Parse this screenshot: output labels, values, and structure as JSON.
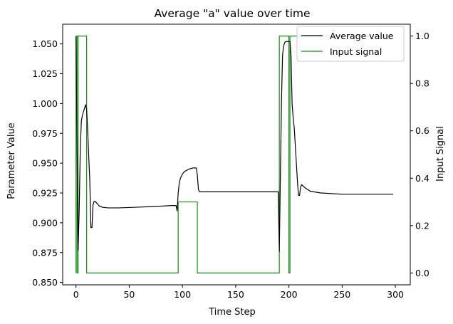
{
  "chart_data": {
    "type": "line",
    "title": "Average \"a\" value over time",
    "xlabel": "Time Step",
    "ylabel": "Parameter Value",
    "y2label": "Input Signal",
    "xlim": [
      -12.5,
      314
    ],
    "ylim": [
      0.848,
      1.0665
    ],
    "y2lim": [
      -0.05,
      1.05
    ],
    "xticks": [
      0,
      50,
      100,
      150,
      200,
      250,
      300
    ],
    "yticks": [
      0.85,
      0.875,
      0.9,
      0.925,
      0.95,
      0.975,
      1.0,
      1.025,
      1.05
    ],
    "ytick_labels": [
      "0.850",
      "0.875",
      "0.900",
      "0.925",
      "0.950",
      "0.975",
      "1.000",
      "1.025",
      "1.050"
    ],
    "y2ticks": [
      0.0,
      0.2,
      0.4,
      0.6,
      0.8,
      1.0
    ],
    "y2tick_labels": [
      "0.0",
      "0.2",
      "0.4",
      "0.6",
      "0.8",
      "1.0"
    ],
    "legend_position": "top-right",
    "grid": false,
    "series": [
      {
        "name": "Average value",
        "axis": "left",
        "color": "#000000",
        "x": [
          0,
          1,
          2,
          3,
          4,
          5,
          6,
          7,
          8,
          9,
          10,
          11,
          12,
          13,
          14,
          15,
          16,
          17,
          18,
          19,
          20,
          21,
          22,
          25,
          30,
          40,
          50,
          60,
          70,
          80,
          90,
          94,
          95,
          96,
          97,
          98,
          100,
          102,
          104,
          106,
          108,
          110,
          113,
          114,
          115,
          116,
          120,
          150,
          189,
          190,
          191,
          192,
          193,
          194,
          195,
          196,
          197,
          198,
          199,
          200,
          201,
          202,
          203,
          204,
          205,
          206,
          207,
          208,
          209,
          210,
          211,
          212,
          215,
          220,
          230,
          250,
          270,
          298
        ],
        "y": [
          1.056,
          0.96,
          0.877,
          0.91,
          0.96,
          0.985,
          0.99,
          0.993,
          0.996,
          0.999,
          0.995,
          0.978,
          0.955,
          0.935,
          0.896,
          0.896,
          0.915,
          0.918,
          0.918,
          0.917,
          0.916,
          0.915,
          0.914,
          0.913,
          0.9125,
          0.9125,
          0.9128,
          0.9132,
          0.9136,
          0.914,
          0.9145,
          0.9145,
          0.91,
          0.925,
          0.933,
          0.937,
          0.941,
          0.943,
          0.944,
          0.945,
          0.9455,
          0.946,
          0.946,
          0.94,
          0.928,
          0.926,
          0.926,
          0.926,
          0.926,
          0.926,
          0.876,
          0.94,
          1.0,
          1.04,
          1.048,
          1.051,
          1.052,
          1.052,
          1.052,
          1.052,
          1.052,
          1.04,
          1.0,
          0.988,
          0.98,
          0.965,
          0.95,
          0.935,
          0.923,
          0.923,
          0.93,
          0.932,
          0.9295,
          0.9265,
          0.925,
          0.924,
          0.924,
          0.924
        ]
      },
      {
        "name": "Input signal",
        "axis": "right",
        "color": "#1a8a1a",
        "x": [
          0,
          0,
          1,
          1,
          2,
          2,
          10,
          10,
          11,
          11,
          95,
          95,
          96,
          96,
          114,
          114,
          115,
          115,
          190,
          190,
          191,
          191,
          200,
          200,
          201,
          201,
          298
        ],
        "y": [
          0,
          1,
          1,
          0,
          0,
          1,
          1,
          0,
          0,
          0,
          0,
          0,
          0,
          0.3,
          0.3,
          0,
          0,
          0,
          0,
          0,
          0,
          1,
          1,
          0,
          0,
          1,
          1
        ]
      }
    ]
  }
}
